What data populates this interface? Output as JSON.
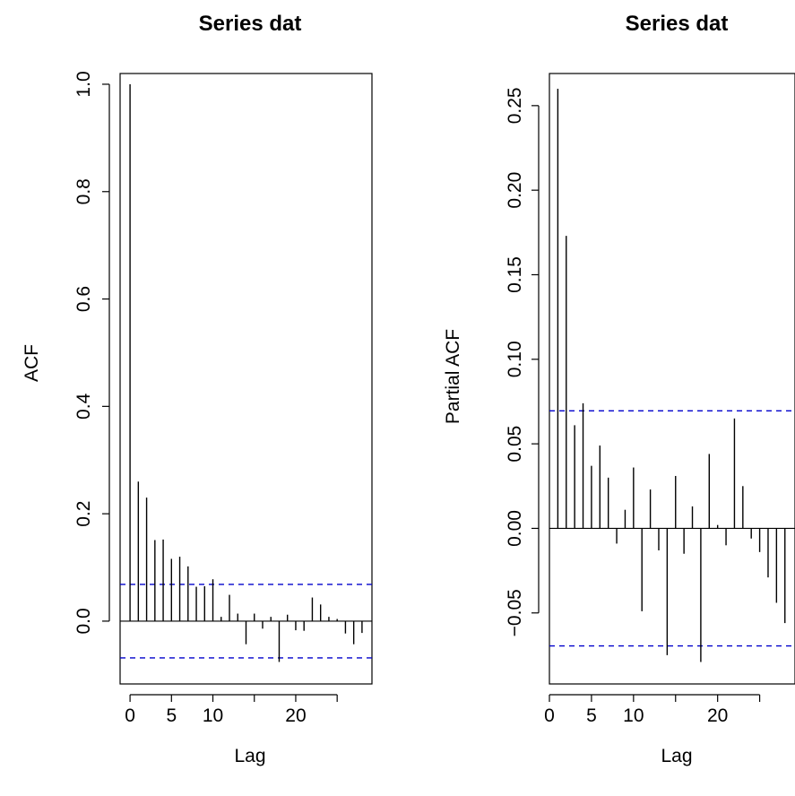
{
  "chart_data": [
    {
      "type": "bar",
      "subtype": "acf",
      "title": "Series  dat",
      "xlabel": "Lag",
      "ylabel": "ACF",
      "xlim": [
        -1.2,
        29.2
      ],
      "ylim": [
        -0.117,
        1.02
      ],
      "xticks": [
        0,
        5,
        10,
        20
      ],
      "yticks": [
        "0.0",
        "0.2",
        "0.4",
        "0.6",
        "0.8",
        "1.0"
      ],
      "confidence_bound": 0.0685,
      "confidence_color": "#0000CC",
      "lags": [
        0,
        1,
        2,
        3,
        4,
        5,
        6,
        7,
        8,
        9,
        10,
        11,
        12,
        13,
        14,
        15,
        16,
        17,
        18,
        19,
        20,
        21,
        22,
        23,
        24,
        25,
        26,
        27,
        28
      ],
      "values": [
        1.0,
        0.26,
        0.23,
        0.151,
        0.152,
        0.116,
        0.12,
        0.102,
        0.064,
        0.065,
        0.078,
        0.008,
        0.049,
        0.014,
        -0.043,
        0.014,
        -0.014,
        0.008,
        -0.076,
        0.012,
        -0.017,
        -0.018,
        0.044,
        0.031,
        0.008,
        0.004,
        -0.023,
        -0.043,
        -0.022
      ]
    },
    {
      "type": "bar",
      "subtype": "pacf",
      "title": "Series  dat",
      "xlabel": "Lag",
      "ylabel": "Partial ACF",
      "xlim": [
        0,
        29.2
      ],
      "ylim": [
        -0.092,
        0.269
      ],
      "xticks": [
        0,
        5,
        10,
        20
      ],
      "yticks": [
        "-0.05",
        "0.00",
        "0.05",
        "0.10",
        "0.15",
        "0.20",
        "0.25"
      ],
      "confidence_bound": 0.0695,
      "confidence_color": "#0000CC",
      "lags": [
        1,
        2,
        3,
        4,
        5,
        6,
        7,
        8,
        9,
        10,
        11,
        12,
        13,
        14,
        15,
        16,
        17,
        18,
        19,
        20,
        21,
        22,
        23,
        24,
        25,
        26,
        27,
        28
      ],
      "values": [
        0.26,
        0.173,
        0.061,
        0.074,
        0.037,
        0.049,
        0.03,
        -0.009,
        0.011,
        0.036,
        -0.049,
        0.023,
        -0.013,
        -0.075,
        0.031,
        -0.015,
        0.013,
        -0.079,
        0.044,
        0.002,
        -0.01,
        0.065,
        0.025,
        -0.006,
        -0.014,
        -0.029,
        -0.044,
        -0.056
      ]
    }
  ]
}
